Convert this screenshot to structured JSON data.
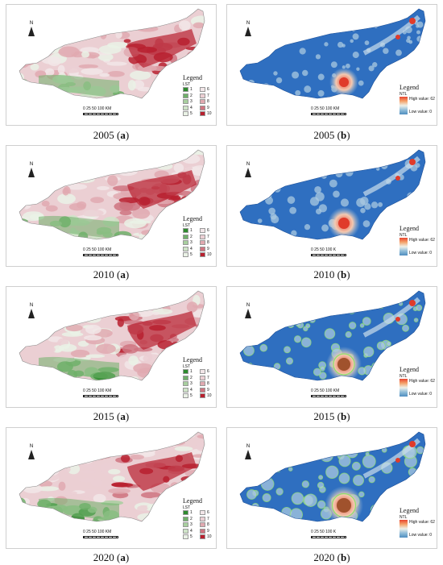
{
  "colors": {
    "lst_ramp": [
      "#2e8b2e",
      "#6fb06a",
      "#a8cf9f",
      "#cfe4c8",
      "#eaf2e6",
      "#f2e6e8",
      "#ebcfd3",
      "#e0a9b0",
      "#cf7480",
      "#b8202f"
    ],
    "ntl_base": "#2f6fc0",
    "ntl_high": "#e03b2a",
    "ntl_ring_2015": "#8fe06a",
    "ntl_core_2015": "#a0522d"
  },
  "compass": {
    "label": "N"
  },
  "scale_labels": {
    "lst": "0 25 50      100 KM",
    "ntl_km": "0 25 50      100 KM",
    "ntl_k": "0 25 50      100 K"
  },
  "legend": {
    "title": "Legend",
    "lst_label": "LST",
    "lst_classes": [
      "1",
      "2",
      "3",
      "4",
      "5",
      "6",
      "7",
      "8",
      "9",
      "10"
    ],
    "ntl_label": "NTL",
    "ntl_high": "High value: 62",
    "ntl_low": "Low value: 0"
  },
  "panels": [
    {
      "year": "2005",
      "letter": "a",
      "type": "LST"
    },
    {
      "year": "2005",
      "letter": "b",
      "type": "NTL"
    },
    {
      "year": "2010",
      "letter": "a",
      "type": "LST"
    },
    {
      "year": "2010",
      "letter": "b",
      "type": "NTL"
    },
    {
      "year": "2015",
      "letter": "a",
      "type": "LST"
    },
    {
      "year": "2015",
      "letter": "b",
      "type": "NTL"
    },
    {
      "year": "2020",
      "letter": "a",
      "type": "LST"
    },
    {
      "year": "2020",
      "letter": "b",
      "type": "NTL"
    }
  ]
}
